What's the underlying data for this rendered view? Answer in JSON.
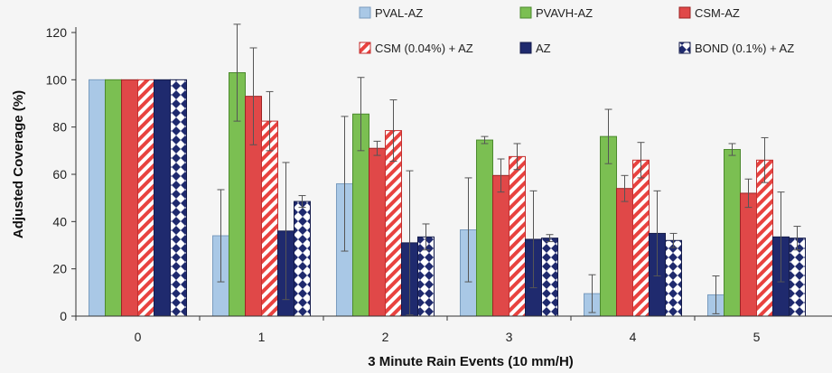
{
  "chart_data": {
    "type": "bar",
    "title": "",
    "xlabel": "3 Minute Rain Events (10 mm/H)",
    "ylabel": "Adjusted Coverage (%)",
    "ylim": [
      0,
      120
    ],
    "yticks": [
      0,
      20,
      40,
      60,
      80,
      100,
      120
    ],
    "categories": [
      "0",
      "1",
      "2",
      "3",
      "4",
      "5"
    ],
    "legend_position": "top",
    "grid": false,
    "series": [
      {
        "name": "PVAL-AZ",
        "pattern": "solid",
        "color": "#a9c8e6",
        "stroke": "#7a9cbf",
        "values": [
          100,
          34,
          56,
          36.5,
          9.5,
          9
        ],
        "errors": [
          0,
          19.5,
          28.5,
          22,
          8,
          8
        ]
      },
      {
        "name": "PVAVH-AZ",
        "pattern": "solid",
        "color": "#7bbf52",
        "stroke": "#4c8a2e",
        "values": [
          100,
          103,
          85.5,
          74.5,
          76,
          70.5
        ],
        "errors": [
          0,
          20.5,
          15.5,
          1.5,
          11.5,
          2.5
        ]
      },
      {
        "name": "CSM-AZ",
        "pattern": "solid",
        "color": "#e04848",
        "stroke": "#9c2424",
        "values": [
          100,
          93,
          71,
          59.5,
          54,
          52
        ],
        "errors": [
          0,
          20.5,
          3,
          7,
          5.5,
          6
        ]
      },
      {
        "name": "CSM (0.04%) + AZ",
        "pattern": "diagonal",
        "color": "#e8423f",
        "stroke": "#c43030",
        "values": [
          100,
          82.5,
          78.5,
          67.5,
          66,
          66
        ],
        "errors": [
          0,
          12.5,
          13,
          5.5,
          7.5,
          9.5
        ]
      },
      {
        "name": "AZ",
        "pattern": "solid",
        "color": "#1f2a6e",
        "stroke": "#141b4a",
        "values": [
          100,
          36,
          31,
          32.5,
          35,
          33.5
        ],
        "errors": [
          0,
          29,
          30.5,
          20.5,
          18,
          19
        ]
      },
      {
        "name": "BOND (0.1%) + AZ",
        "pattern": "diamond",
        "color": "#1f2a6e",
        "stroke": "#141b4a",
        "values": [
          100,
          48.5,
          33.5,
          33,
          32,
          33
        ],
        "errors": [
          0,
          2.5,
          5.5,
          1.5,
          3,
          5
        ]
      }
    ]
  }
}
